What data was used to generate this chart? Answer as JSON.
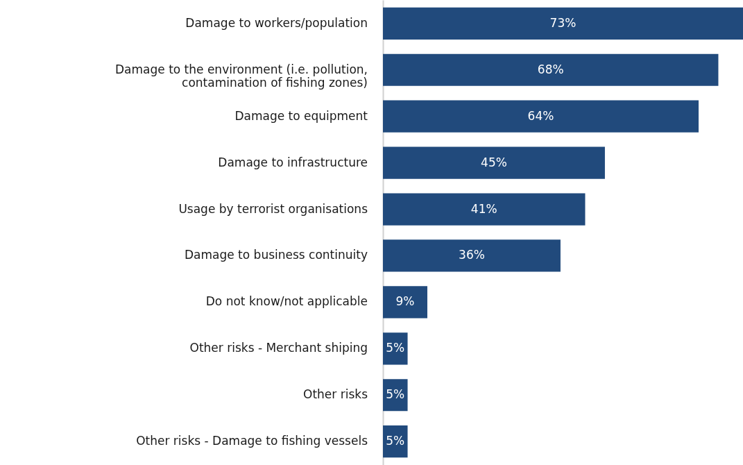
{
  "chart_data": {
    "type": "bar",
    "orientation": "horizontal",
    "color": "#214a7c",
    "categories": [
      "Damage to workers/population",
      "Damage to the environment (i.e. pollution, contamination of fishing zones)",
      "Damage to equipment",
      "Damage to infrastructure",
      "Usage by terrorist organisations",
      "Damage to business continuity",
      "Do not know/not applicable",
      "Other risks - Merchant shiping",
      "Other risks",
      "Other risks - Damage to fishing vessels"
    ],
    "values": [
      73,
      68,
      64,
      45,
      41,
      36,
      9,
      5,
      5,
      5
    ],
    "value_labels": [
      "73%",
      "68%",
      "64%",
      "45%",
      "41%",
      "36%",
      "9%",
      "5%",
      "5%",
      "5%"
    ]
  }
}
